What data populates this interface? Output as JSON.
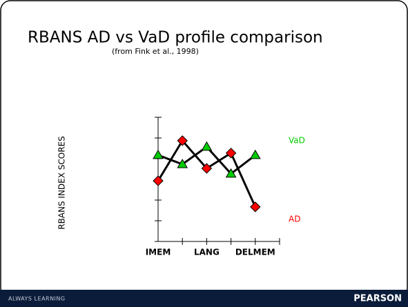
{
  "chart_data": {
    "type": "line",
    "title": "RBANS AD vs VaD profile comparison",
    "subtitle": "(from Fink et al., 1998)",
    "y_label": "RBANS INDEX SCORES",
    "categories": [
      "IMEM",
      null,
      "LANG",
      null,
      "DELMEM"
    ],
    "series": [
      {
        "name": "VaD",
        "color": "#00cc00",
        "marker": "triangle",
        "values": [
          4.17,
          3.73,
          4.57,
          3.27,
          4.17
        ]
      },
      {
        "name": "AD",
        "color": "#ff0000",
        "marker": "diamond",
        "values": [
          2.93,
          4.87,
          3.53,
          4.27,
          1.67
        ]
      }
    ],
    "ylim": [
      0,
      6
    ],
    "yticks": [
      0,
      1,
      2,
      3,
      4,
      5,
      6
    ]
  },
  "footer": {
    "left": "ALWAYS LEARNING",
    "right": "PEARSON"
  }
}
